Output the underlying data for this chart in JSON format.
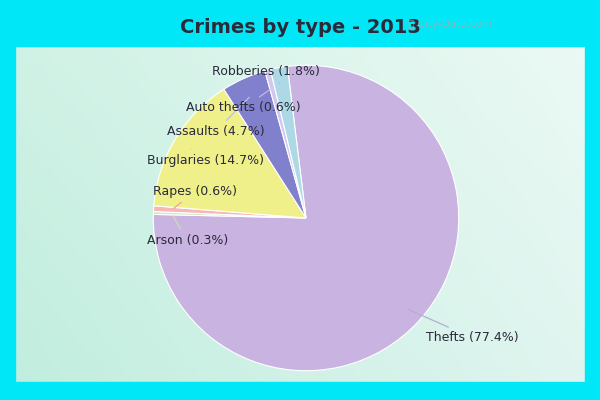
{
  "title": "Crimes by type - 2013",
  "categories": [
    "Thefts",
    "Burglaries",
    "Assaults",
    "Robberies",
    "Rapes",
    "Auto thefts",
    "Arson"
  ],
  "values": [
    77.4,
    14.7,
    4.7,
    1.8,
    0.6,
    0.6,
    0.3
  ],
  "colors": [
    "#c9b3e0",
    "#f0f08a",
    "#8080cc",
    "#add8e6",
    "#f4b8b8",
    "#d0c8f0",
    "#d4e8c4"
  ],
  "labels": [
    "Thefts (77.4%)",
    "Burglaries (14.7%)",
    "Assaults (4.7%)",
    "Robberies (1.8%)",
    "Rapes (0.6%)",
    "Auto thefts (0.6%)",
    "Arson (0.3%)"
  ],
  "line_colors": [
    "#b0b0d0",
    "#e8e870",
    "#c0c0e8",
    "#90c8e0",
    "#f0a0a0",
    "#d0b0e8",
    "#c8e0b0"
  ],
  "title_bg": "#00e8f8",
  "title_color": "#2a2a3a",
  "title_fontsize": 14,
  "label_fontsize": 9,
  "watermark": "City-Data.com"
}
